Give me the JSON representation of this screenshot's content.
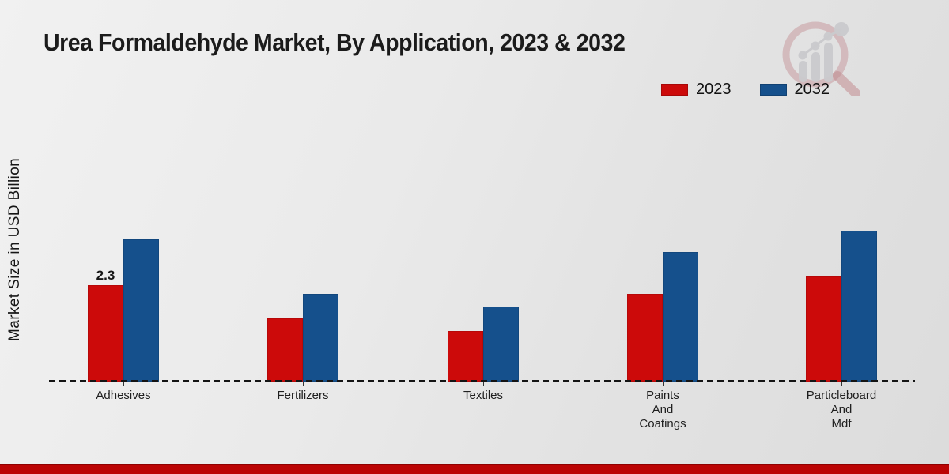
{
  "title": "Urea Formaldehyde Market, By Application, 2023 & 2032",
  "ylabel": "Market Size in USD Billion",
  "legend": [
    {
      "label": "2023",
      "color": "#cc0a0a"
    },
    {
      "label": "2032",
      "color": "#15508c"
    }
  ],
  "chart_data": {
    "type": "bar",
    "title": "Urea Formaldehyde Market, By Application, 2023 & 2032",
    "xlabel": "",
    "ylabel": "Market Size in USD Billion",
    "categories": [
      "Adhesives",
      "Fertilizers",
      "Textiles",
      "Paints And Coatings",
      "Particleboard And Mdf"
    ],
    "category_lines": [
      [
        "Adhesives"
      ],
      [
        "Fertilizers"
      ],
      [
        "Textiles"
      ],
      [
        "Paints",
        "And",
        "Coatings"
      ],
      [
        "Particleboard",
        "And",
        "Mdf"
      ]
    ],
    "series": [
      {
        "name": "2023",
        "color": "#cc0a0a",
        "values": [
          2.3,
          1.5,
          1.2,
          2.1,
          2.5
        ]
      },
      {
        "name": "2032",
        "color": "#15508c",
        "values": [
          3.4,
          2.1,
          1.8,
          3.1,
          3.6
        ]
      }
    ],
    "data_labels": [
      {
        "series": "2023",
        "category": "Adhesives",
        "text": "2.3"
      }
    ],
    "ylim": [
      0,
      4
    ],
    "unit": "USD Billion",
    "grid": false,
    "baseline_style": "dashed",
    "legend_position": "top-right"
  },
  "watermark": {
    "name": "magnifier-bar-chart-logo"
  },
  "colors": {
    "accent_red": "#cc0a0a",
    "accent_blue": "#15508c",
    "footer_red": "#bb0404",
    "background": "#e8e8e8"
  }
}
